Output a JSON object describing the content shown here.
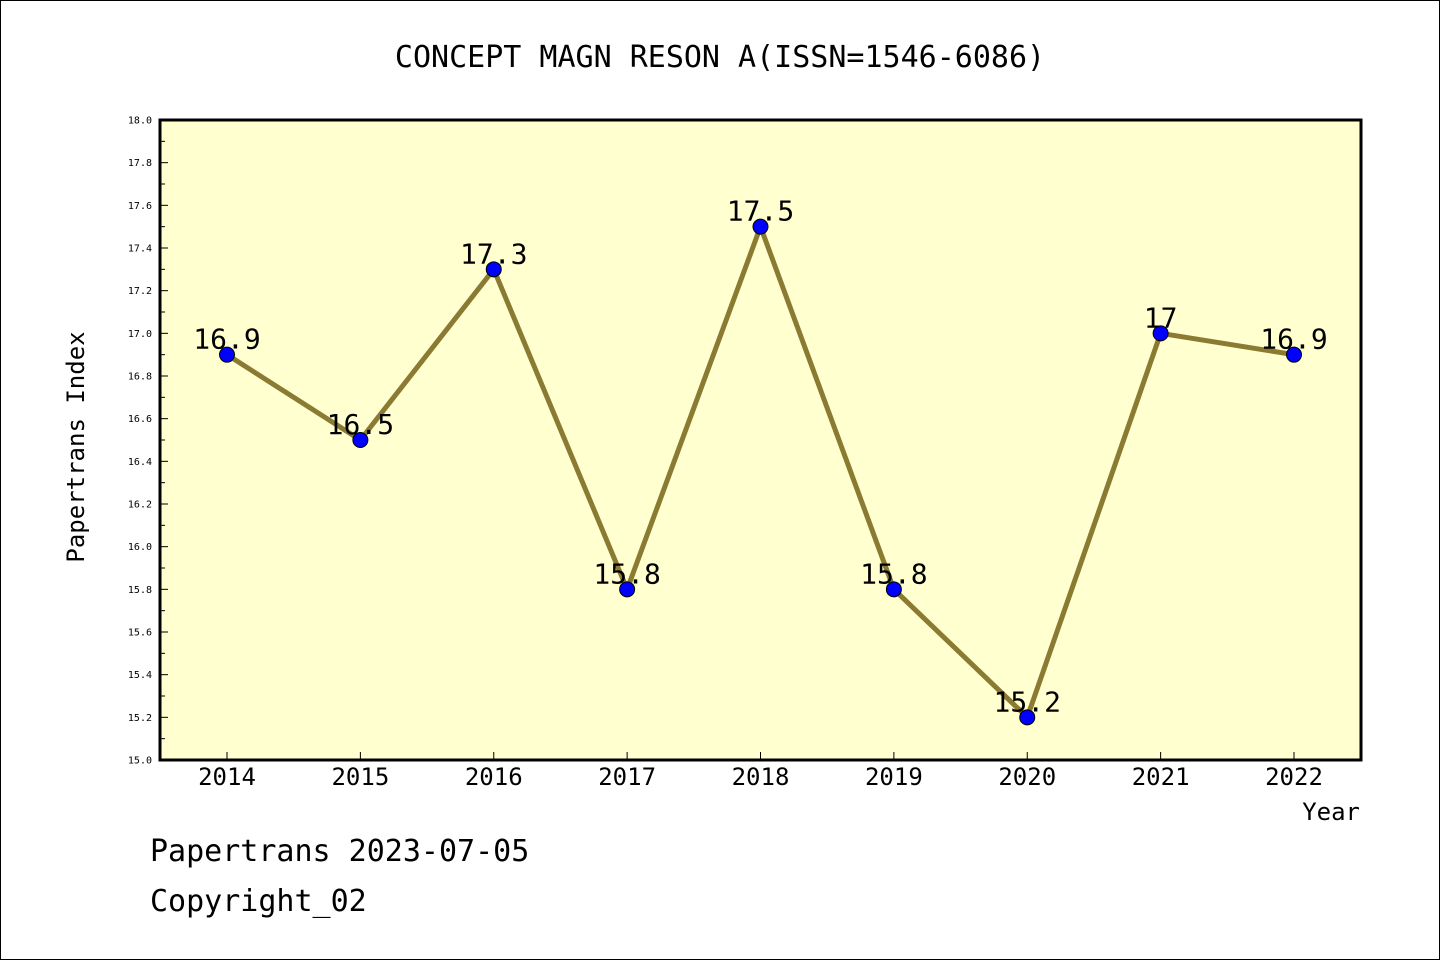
{
  "chart_data": {
    "type": "line",
    "title": "CONCEPT MAGN RESON A(ISSN=1546-6086)",
    "xlabel": "Year",
    "ylabel": "Papertrans Index",
    "categories": [
      "2014",
      "2015",
      "2016",
      "2017",
      "2018",
      "2019",
      "2020",
      "2021",
      "2022"
    ],
    "series": [
      {
        "values": [
          16.9,
          16.5,
          17.3,
          15.8,
          17.5,
          15.8,
          15.2,
          17.0,
          16.9
        ],
        "labels": [
          "16.9",
          "16.5",
          "17.3",
          "15.8",
          "17.5",
          "15.8",
          "15.2",
          "17",
          "16.9"
        ]
      }
    ],
    "ylim": [
      15.0,
      18.0
    ],
    "yticks": [
      "15.0",
      "15.2",
      "15.4",
      "15.6",
      "15.8",
      "16.0",
      "16.2",
      "16.4",
      "16.6",
      "16.8",
      "17.0",
      "17.2",
      "17.4",
      "17.6",
      "17.8",
      "18.0"
    ],
    "grid": false,
    "legend": "none",
    "colors": {
      "plot_background": "#ffffd0",
      "line": "#8b7a32",
      "marker": "#0000ff",
      "marker_edge": "#000000",
      "axis": "#000000"
    }
  },
  "footer": {
    "date_line": "Papertrans 2023-07-05",
    "copyright": "Copyright_02"
  }
}
